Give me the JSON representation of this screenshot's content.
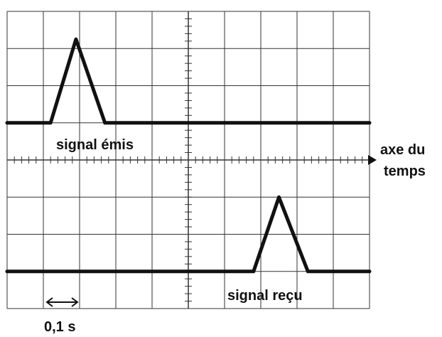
{
  "chart_data": {
    "type": "line",
    "title": "",
    "grid": true,
    "axis_label": [
      "axe du",
      "temps"
    ],
    "scale_label": "0,1 s",
    "scale_division_s": 0.1,
    "x_divisions": 10,
    "y_divisions": 8,
    "series": [
      {
        "name": "signal émis",
        "x": [
          0,
          0.12,
          0.19,
          0.27,
          1.0
        ],
        "y": [
          0,
          0,
          1,
          0,
          0
        ]
      },
      {
        "name": "signal reçu",
        "x": [
          0,
          0.68,
          0.75,
          0.83,
          1.0
        ],
        "y": [
          0,
          0,
          1,
          0,
          0
        ]
      }
    ]
  },
  "colors": {
    "grid": "#333333",
    "trace": "#111111",
    "background": "#ffffff"
  }
}
